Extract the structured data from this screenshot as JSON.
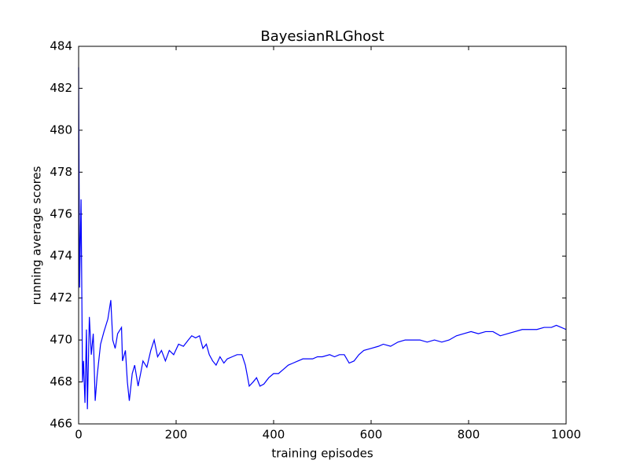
{
  "chart_data": {
    "type": "line",
    "title": "BayesianRLGhost",
    "xlabel": "training episodes",
    "ylabel": "running average scores",
    "xlim": [
      0,
      1000
    ],
    "xticks": [
      0,
      200,
      400,
      600,
      800,
      1000
    ],
    "ylim": [
      466,
      484
    ],
    "yticks": [
      466,
      468,
      470,
      472,
      474,
      476,
      478,
      480,
      482,
      484
    ],
    "color": "#0000ff",
    "x": [
      0,
      2,
      5,
      8,
      10,
      13,
      16,
      18,
      22,
      26,
      30,
      34,
      38,
      45,
      52,
      60,
      66,
      70,
      75,
      80,
      88,
      90,
      96,
      100,
      104,
      110,
      115,
      122,
      128,
      132,
      140,
      148,
      155,
      162,
      170,
      178,
      186,
      195,
      205,
      215,
      225,
      232,
      240,
      248,
      255,
      262,
      268,
      275,
      282,
      290,
      298,
      305,
      315,
      325,
      335,
      342,
      350,
      358,
      365,
      372,
      380,
      390,
      400,
      410,
      420,
      430,
      440,
      450,
      460,
      470,
      480,
      490,
      500,
      515,
      525,
      535,
      545,
      555,
      565,
      575,
      585,
      600,
      615,
      625,
      640,
      655,
      670,
      685,
      700,
      715,
      730,
      745,
      760,
      775,
      790,
      805,
      820,
      835,
      850,
      865,
      880,
      895,
      910,
      925,
      940,
      955,
      970,
      980,
      990,
      1000
    ],
    "values": [
      483,
      472.5,
      476.7,
      468,
      469,
      467,
      470.5,
      466.7,
      471.1,
      469.3,
      470.3,
      467.1,
      468.3,
      469.8,
      470.4,
      471,
      471.9,
      470,
      469.6,
      470.3,
      470.6,
      469,
      469.5,
      468,
      467.1,
      468.4,
      468.8,
      467.8,
      468.5,
      469,
      468.7,
      469.5,
      470,
      469.2,
      469.5,
      469,
      469.5,
      469.3,
      469.8,
      469.7,
      470,
      470.2,
      470.1,
      470.2,
      469.6,
      469.8,
      469.3,
      469,
      468.8,
      469.2,
      468.9,
      469.1,
      469.2,
      469.3,
      469.3,
      468.8,
      467.8,
      468,
      468.2,
      467.8,
      467.9,
      468.2,
      468.4,
      468.4,
      468.6,
      468.8,
      468.9,
      469,
      469.1,
      469.1,
      469.1,
      469.2,
      469.2,
      469.3,
      469.2,
      469.3,
      469.3,
      468.9,
      469,
      469.3,
      469.5,
      469.6,
      469.7,
      469.8,
      469.7,
      469.9,
      470,
      470,
      470,
      469.9,
      470,
      469.9,
      470,
      470.2,
      470.3,
      470.4,
      470.3,
      470.4,
      470.4,
      470.2,
      470.3,
      470.4,
      470.5,
      470.5,
      470.5,
      470.6,
      470.6,
      470.7,
      470.6,
      470.5
    ]
  }
}
